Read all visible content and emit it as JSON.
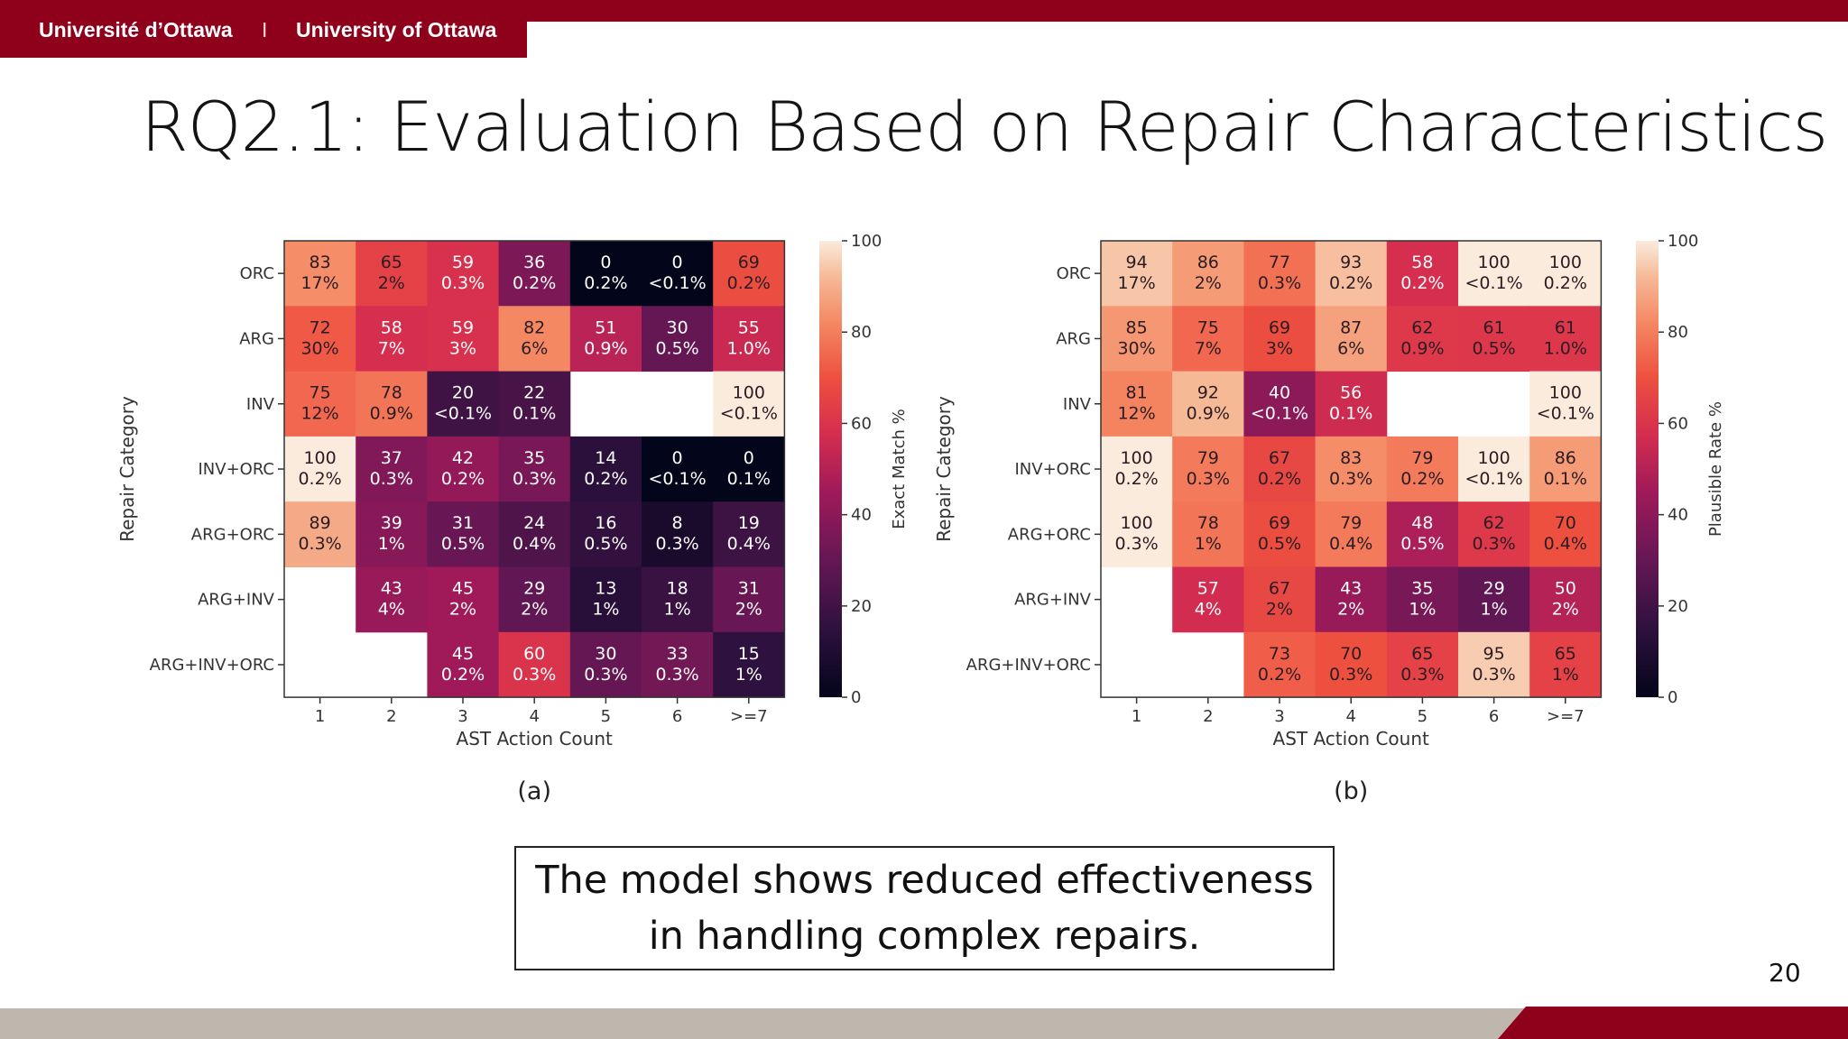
{
  "header": {
    "brand_fr": "Université d’Ottawa",
    "brand_sep": "I",
    "brand_en": "University of Ottawa",
    "accent_color": "#8f001a"
  },
  "slide": {
    "title": "RQ2.1: Evaluation Based on Repair Characteristics",
    "callout_line1": "The model shows reduced effectiveness",
    "callout_line2": "in handling complex repairs.",
    "page_number": "20"
  },
  "chart_data": [
    {
      "type": "heatmap",
      "panel_label": "(a)",
      "xlabel": "AST Action Count",
      "ylabel": "Repair Category",
      "colorbar_label": "Exact Match %",
      "colorbar_ticks": [
        "0",
        "20",
        "40",
        "60",
        "80",
        "100"
      ],
      "vlim": [
        0,
        100
      ],
      "x_categories": [
        "1",
        "2",
        "3",
        "4",
        "5",
        "6",
        ">=7"
      ],
      "y_categories": [
        "ORC",
        "ARG",
        "INV",
        "INV+ORC",
        "ARG+ORC",
        "ARG+INV",
        "ARG+INV+ORC"
      ],
      "values": [
        [
          83,
          65,
          59,
          36,
          0,
          0,
          69
        ],
        [
          72,
          58,
          59,
          82,
          51,
          30,
          55
        ],
        [
          75,
          78,
          20,
          22,
          null,
          null,
          100
        ],
        [
          100,
          37,
          42,
          35,
          14,
          0,
          0
        ],
        [
          89,
          39,
          31,
          24,
          16,
          8,
          19
        ],
        [
          null,
          43,
          45,
          29,
          13,
          18,
          31
        ],
        [
          null,
          null,
          45,
          60,
          30,
          33,
          15
        ]
      ],
      "shares": [
        [
          "17%",
          "2%",
          "0.3%",
          "0.2%",
          "0.2%",
          "<0.1%",
          "0.2%"
        ],
        [
          "30%",
          "7%",
          "3%",
          "6%",
          "0.9%",
          "0.5%",
          "1.0%"
        ],
        [
          "12%",
          "0.9%",
          "<0.1%",
          "0.1%",
          null,
          null,
          "<0.1%"
        ],
        [
          "0.2%",
          "0.3%",
          "0.2%",
          "0.3%",
          "0.2%",
          "<0.1%",
          "0.1%"
        ],
        [
          "0.3%",
          "1%",
          "0.5%",
          "0.4%",
          "0.5%",
          "0.3%",
          "0.4%"
        ],
        [
          null,
          "4%",
          "2%",
          "2%",
          "1%",
          "1%",
          "2%"
        ],
        [
          null,
          null,
          "0.2%",
          "0.3%",
          "0.3%",
          "0.3%",
          "1%"
        ]
      ]
    },
    {
      "type": "heatmap",
      "panel_label": "(b)",
      "xlabel": "AST Action Count",
      "ylabel": "Repair Category",
      "colorbar_label": "Plausible Rate %",
      "colorbar_ticks": [
        "0",
        "20",
        "40",
        "60",
        "80",
        "100"
      ],
      "vlim": [
        0,
        100
      ],
      "x_categories": [
        "1",
        "2",
        "3",
        "4",
        "5",
        "6",
        ">=7"
      ],
      "y_categories": [
        "ORC",
        "ARG",
        "INV",
        "INV+ORC",
        "ARG+ORC",
        "ARG+INV",
        "ARG+INV+ORC"
      ],
      "values": [
        [
          94,
          86,
          77,
          93,
          58,
          100,
          100
        ],
        [
          85,
          75,
          69,
          87,
          62,
          61,
          61
        ],
        [
          81,
          92,
          40,
          56,
          null,
          null,
          100
        ],
        [
          100,
          79,
          67,
          83,
          79,
          100,
          86
        ],
        [
          100,
          78,
          69,
          79,
          48,
          62,
          70
        ],
        [
          null,
          57,
          67,
          43,
          35,
          29,
          50
        ],
        [
          null,
          null,
          73,
          70,
          65,
          95,
          65
        ]
      ],
      "shares": [
        [
          "17%",
          "2%",
          "0.3%",
          "0.2%",
          "0.2%",
          "<0.1%",
          "0.2%"
        ],
        [
          "30%",
          "7%",
          "3%",
          "6%",
          "0.9%",
          "0.5%",
          "1.0%"
        ],
        [
          "12%",
          "0.9%",
          "<0.1%",
          "0.1%",
          null,
          null,
          "<0.1%"
        ],
        [
          "0.2%",
          "0.3%",
          "0.2%",
          "0.3%",
          "0.2%",
          "<0.1%",
          "0.1%"
        ],
        [
          "0.3%",
          "1%",
          "0.5%",
          "0.4%",
          "0.5%",
          "0.3%",
          "0.4%"
        ],
        [
          null,
          "4%",
          "2%",
          "2%",
          "1%",
          "1%",
          "2%"
        ],
        [
          null,
          null,
          "0.2%",
          "0.3%",
          "0.3%",
          "0.3%",
          "1%"
        ]
      ]
    }
  ]
}
